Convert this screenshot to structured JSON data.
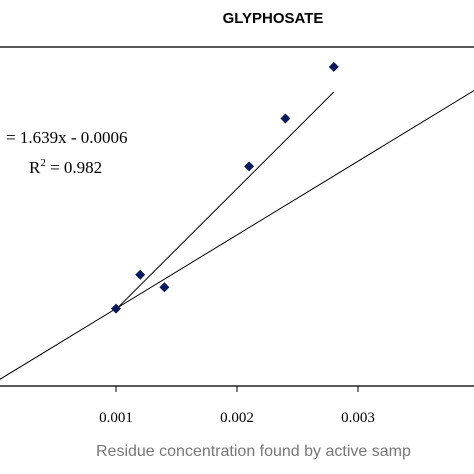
{
  "chart_data": {
    "type": "scatter",
    "title": "GLYPHOSATE",
    "xlabel": "Residue concentration found by active samp",
    "ylabel": "",
    "xlim": [
      0.0,
      0.004
    ],
    "ylim": [
      0.0,
      0.0046
    ],
    "x_ticks": [
      0.001,
      0.002,
      0.003
    ],
    "x_tick_labels": [
      "0.001",
      "0.002",
      "0.003"
    ],
    "grid": false,
    "series": [
      {
        "points": [
          {
            "x": 0.001,
            "y": 0.00105
          },
          {
            "x": 0.0012,
            "y": 0.00151
          },
          {
            "x": 0.0014,
            "y": 0.00134
          },
          {
            "x": 0.0021,
            "y": 0.00298
          },
          {
            "x": 0.0024,
            "y": 0.00363
          },
          {
            "x": 0.0028,
            "y": 0.00433
          }
        ],
        "color": "#0b1a5c",
        "marker": "diamond"
      }
    ],
    "lines": [
      {
        "kind": "fit",
        "slope": 1.639,
        "intercept": -0.0006,
        "x_range": [
          0.001,
          0.0028
        ]
      },
      {
        "kind": "reference",
        "slope": 1.0,
        "intercept": 5e-05,
        "x_range": [
          0.0,
          0.004
        ]
      }
    ],
    "annotations": {
      "equation": "= 1.639x - 0.0006",
      "r2_prefix": "R",
      "r2_sup": "2",
      "r2_value": " = 0.982"
    }
  }
}
